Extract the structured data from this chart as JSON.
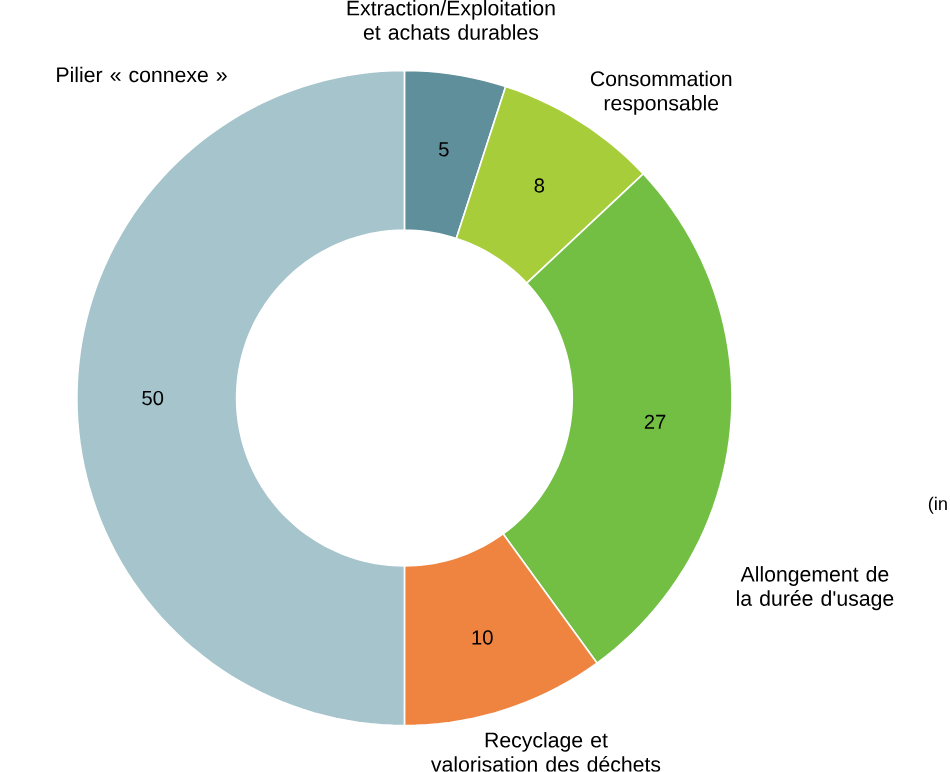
{
  "chart_data": {
    "type": "donut",
    "categories": [
      "Extraction/Exploitation et achats durables",
      "Consommation responsable",
      "Allongement de la durée d'usage",
      "Recyclage et valorisation des déchets",
      "Pilier « connexe »"
    ],
    "values": [
      5,
      8,
      27,
      10,
      50
    ],
    "colors": [
      "#5f8f9b",
      "#a8cd3a",
      "#72bf44",
      "#ef8440",
      "#a5c4cc"
    ],
    "data_labels": true,
    "annotations": [
      "(in"
    ]
  }
}
